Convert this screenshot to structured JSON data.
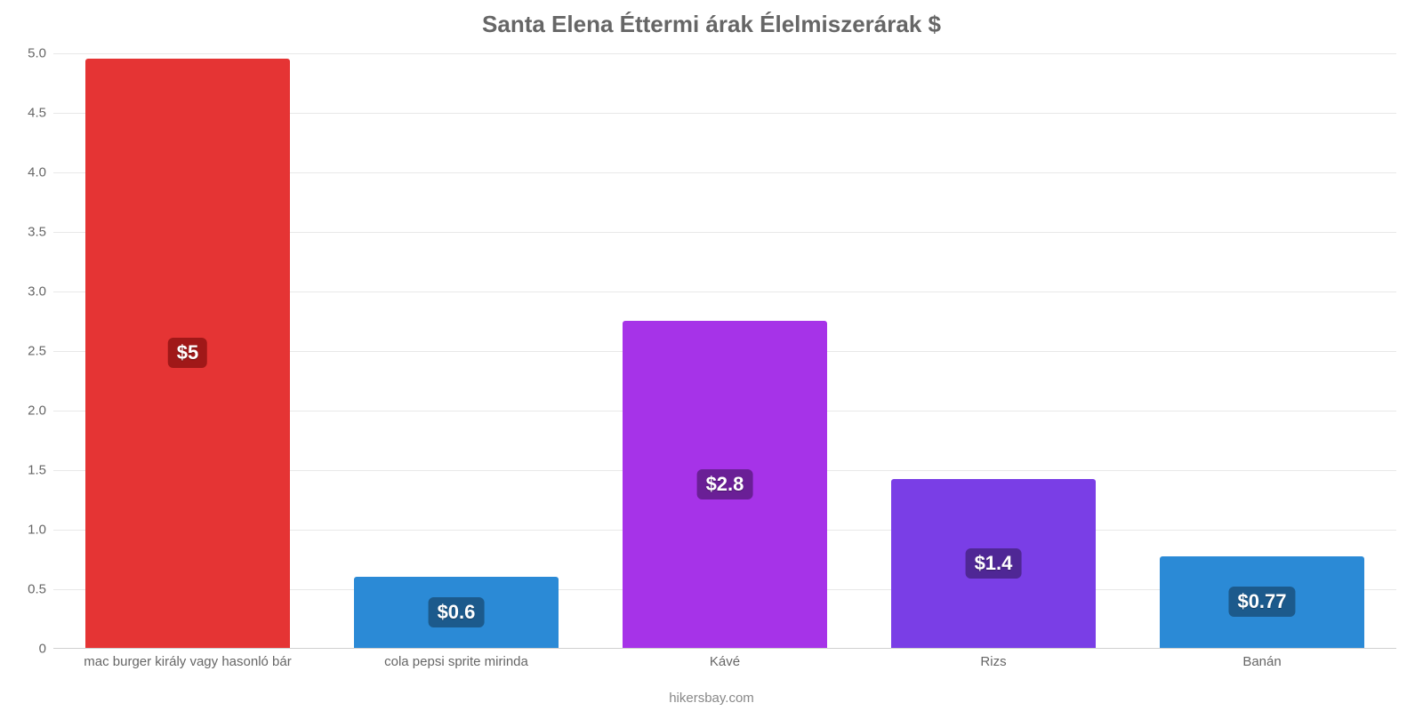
{
  "chart": {
    "type": "bar",
    "title": "Santa Elena Éttermi árak Élelmiszerárak $",
    "title_fontsize": 26,
    "title_color": "#666666",
    "attribution": "hikersbay.com",
    "attribution_fontsize": 15,
    "attribution_color": "#888888",
    "background_color": "#ffffff",
    "grid_color": "#e8e8e8",
    "axis_color": "#d0d0d0",
    "ylim": [
      0,
      5.0
    ],
    "ytick_step": 0.5,
    "yticks": [
      {
        "v": 0,
        "label": "0"
      },
      {
        "v": 0.5,
        "label": "0.5"
      },
      {
        "v": 1.0,
        "label": "1.0"
      },
      {
        "v": 1.5,
        "label": "1.5"
      },
      {
        "v": 2.0,
        "label": "2.0"
      },
      {
        "v": 2.5,
        "label": "2.5"
      },
      {
        "v": 3.0,
        "label": "3.0"
      },
      {
        "v": 3.5,
        "label": "3.5"
      },
      {
        "v": 4.0,
        "label": "4.0"
      },
      {
        "v": 4.5,
        "label": "4.5"
      },
      {
        "v": 5.0,
        "label": "5.0"
      }
    ],
    "ytick_fontsize": 15,
    "ytick_color": "#666666",
    "xlabel_fontsize": 15,
    "xlabel_color": "#666666",
    "bar_width": 0.76,
    "value_label_fontsize": 22,
    "value_label_color": "#ffffff",
    "categories": [
      {
        "label": "mac burger király vagy hasonló bár",
        "value": 4.95,
        "value_label": "$5",
        "bar_color": "#e53434",
        "badge_color": "#a01818"
      },
      {
        "label": "cola pepsi sprite mirinda",
        "value": 0.6,
        "value_label": "$0.6",
        "bar_color": "#2b8ad6",
        "badge_color": "#1c5a8c"
      },
      {
        "label": "Kávé",
        "value": 2.75,
        "value_label": "$2.8",
        "bar_color": "#a633e8",
        "badge_color": "#6a1f96"
      },
      {
        "label": "Rizs",
        "value": 1.42,
        "value_label": "$1.4",
        "bar_color": "#7a3ee6",
        "badge_color": "#4f2795"
      },
      {
        "label": "Banán",
        "value": 0.77,
        "value_label": "$0.77",
        "bar_color": "#2b8ad6",
        "badge_color": "#1c5a8c"
      }
    ]
  }
}
